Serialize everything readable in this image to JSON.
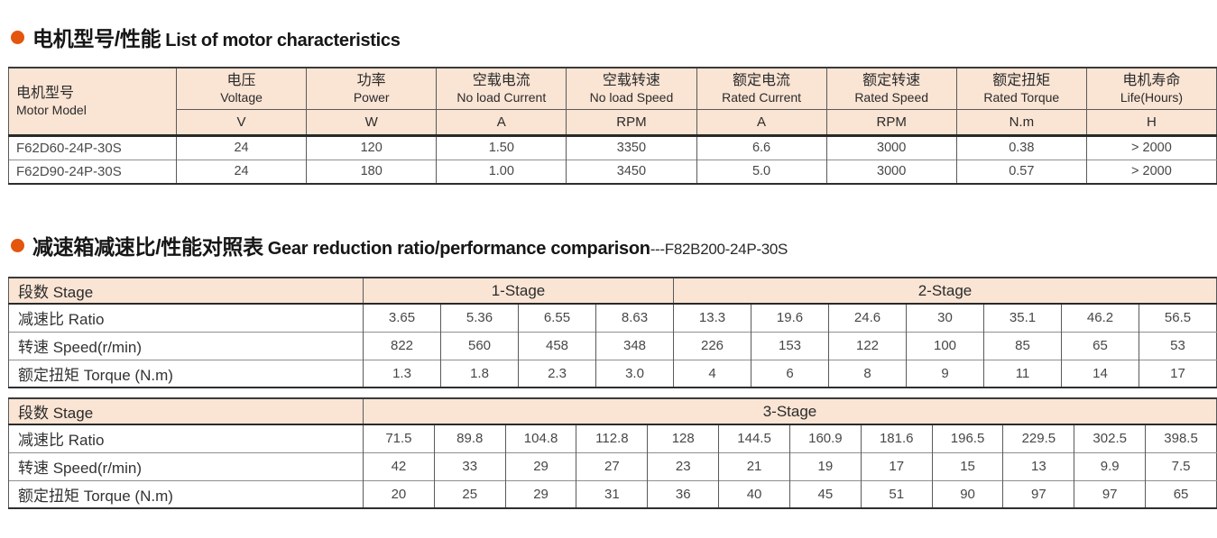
{
  "accent_color": "#e4550d",
  "header_bg_color": "#fae4d4",
  "section1": {
    "title_zh": "电机型号/性能",
    "title_en": "List of motor characteristics",
    "table": {
      "corner_zh": "电机型号",
      "corner_en": "Motor Model",
      "columns": [
        {
          "zh": "电压",
          "en": "Voltage",
          "unit": "V"
        },
        {
          "zh": "功率",
          "en": "Power",
          "unit": "W"
        },
        {
          "zh": "空载电流",
          "en": "No load Current",
          "unit": "A"
        },
        {
          "zh": "空载转速",
          "en": "No load Speed",
          "unit": "RPM"
        },
        {
          "zh": "额定电流",
          "en": "Rated Current",
          "unit": "A"
        },
        {
          "zh": "额定转速",
          "en": "Rated Speed",
          "unit": "RPM"
        },
        {
          "zh": "额定扭矩",
          "en": "Rated Torque",
          "unit": "N.m"
        },
        {
          "zh": "电机寿命",
          "en": "Life(Hours)",
          "unit": "H"
        }
      ],
      "rows": [
        {
          "model": "F62D60-24P-30S",
          "values": [
            "24",
            "120",
            "1.50",
            "3350",
            "6.6",
            "3000",
            "0.38",
            "> 2000"
          ]
        },
        {
          "model": "F62D90-24P-30S",
          "values": [
            "24",
            "180",
            "1.00",
            "3450",
            "5.0",
            "3000",
            "0.57",
            "> 2000"
          ]
        }
      ]
    }
  },
  "section2": {
    "title_zh": "减速箱减速比/性能对照表",
    "title_en": "Gear reduction ratio/performance comparison",
    "title_suffix": "---F82B200-24P-30S",
    "table_a": {
      "corner": "段数 Stage",
      "stages": [
        {
          "label": "1-Stage",
          "cols": 4
        },
        {
          "label": "2-Stage",
          "cols": 7
        }
      ],
      "rows": [
        {
          "label": "减速比 Ratio",
          "values": [
            "3.65",
            "5.36",
            "6.55",
            "8.63",
            "13.3",
            "19.6",
            "24.6",
            "30",
            "35.1",
            "46.2",
            "56.5"
          ]
        },
        {
          "label": "转速 Speed(r/min)",
          "values": [
            "822",
            "560",
            "458",
            "348",
            "226",
            "153",
            "122",
            "100",
            "85",
            "65",
            "53"
          ]
        },
        {
          "label": "额定扭矩 Torque (N.m)",
          "values": [
            "1.3",
            "1.8",
            "2.3",
            "3.0",
            "4",
            "6",
            "8",
            "9",
            "11",
            "14",
            "17"
          ]
        }
      ]
    },
    "table_b": {
      "corner": "段数 Stage",
      "stages": [
        {
          "label": "3-Stage",
          "cols": 12
        }
      ],
      "rows": [
        {
          "label": "减速比 Ratio",
          "values": [
            "71.5",
            "89.8",
            "104.8",
            "112.8",
            "128",
            "144.5",
            "160.9",
            "181.6",
            "196.5",
            "229.5",
            "302.5",
            "398.5"
          ]
        },
        {
          "label": "转速 Speed(r/min)",
          "values": [
            "42",
            "33",
            "29",
            "27",
            "23",
            "21",
            "19",
            "17",
            "15",
            "13",
            "9.9",
            "7.5"
          ]
        },
        {
          "label": "额定扭矩 Torque (N.m)",
          "values": [
            "20",
            "25",
            "29",
            "31",
            "36",
            "40",
            "45",
            "51",
            "90",
            "97",
            "97",
            "65"
          ]
        }
      ]
    }
  }
}
